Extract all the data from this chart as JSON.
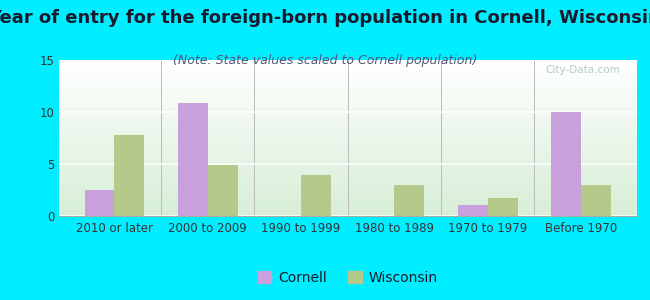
{
  "title": "Year of entry for the foreign-born population in Cornell, Wisconsin",
  "subtitle": "(Note: State values scaled to Cornell population)",
  "categories": [
    "2010 or later",
    "2000 to 2009",
    "1990 to 1999",
    "1980 to 1989",
    "1970 to 1979",
    "Before 1970"
  ],
  "cornell_values": [
    2.5,
    10.9,
    0,
    0,
    1.1,
    10.0
  ],
  "wisconsin_values": [
    7.8,
    4.9,
    3.9,
    3.0,
    1.7,
    3.0
  ],
  "cornell_color": "#c9a0dc",
  "wisconsin_color": "#b5c98a",
  "background_color": "#00eeff",
  "ylim": [
    0,
    15
  ],
  "yticks": [
    0,
    5,
    10,
    15
  ],
  "bar_width": 0.32,
  "title_fontsize": 13,
  "subtitle_fontsize": 9,
  "tick_fontsize": 8.5,
  "legend_fontsize": 10,
  "title_color": "#1a1a2e",
  "subtitle_color": "#555577"
}
